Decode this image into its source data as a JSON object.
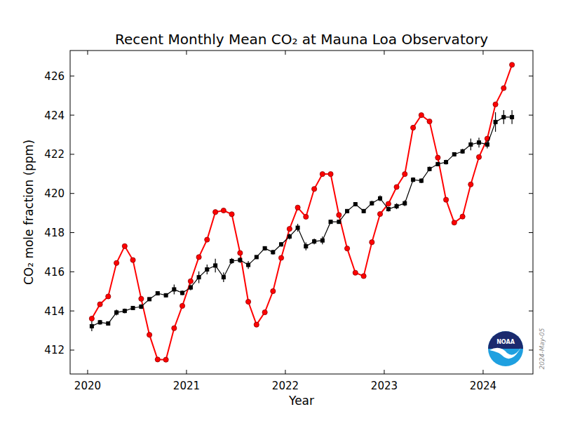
{
  "chart_data": {
    "type": "line",
    "title": "Recent Monthly Mean CO₂ at Mauna Loa Observatory",
    "x_label": "Year",
    "y_label": "CO₂ mole fraction (ppm)",
    "annotations": [
      "2024-May-05"
    ],
    "logo": "NOAA",
    "xlim": [
      2019.823,
      2024.504
    ],
    "ylim": [
      410.78,
      427.3
    ],
    "xticks": [
      2020,
      2021,
      2022,
      2023,
      2024
    ],
    "yticks": [
      412,
      414,
      416,
      418,
      420,
      422,
      424,
      426
    ],
    "grid": false,
    "x": [
      2020.042,
      2020.125,
      2020.208,
      2020.292,
      2020.375,
      2020.458,
      2020.542,
      2020.625,
      2020.708,
      2020.792,
      2020.875,
      2020.958,
      2021.042,
      2021.125,
      2021.208,
      2021.292,
      2021.375,
      2021.458,
      2021.542,
      2021.625,
      2021.708,
      2021.792,
      2021.875,
      2021.958,
      2022.042,
      2022.125,
      2022.208,
      2022.292,
      2022.375,
      2022.458,
      2022.542,
      2022.625,
      2022.708,
      2022.792,
      2022.875,
      2022.958,
      2023.042,
      2023.125,
      2023.208,
      2023.292,
      2023.375,
      2023.458,
      2023.542,
      2023.625,
      2023.708,
      2023.792,
      2023.875,
      2023.958,
      2024.042,
      2024.125,
      2024.208,
      2024.292
    ],
    "series": [
      {
        "color": "#ff0000",
        "marker": "circle",
        "line_style": "solid",
        "values": [
          413.61,
          414.34,
          414.74,
          416.45,
          417.31,
          416.6,
          414.62,
          412.78,
          411.52,
          411.51,
          413.12,
          414.26,
          415.52,
          416.75,
          417.64,
          419.05,
          419.13,
          418.94,
          416.96,
          414.47,
          413.3,
          413.93,
          415.01,
          416.71,
          418.19,
          419.28,
          418.81,
          420.23,
          420.99,
          420.99,
          418.9,
          417.19,
          415.95,
          415.78,
          417.51,
          418.95,
          419.47,
          420.33,
          420.99,
          423.36,
          424.0,
          423.68,
          421.83,
          419.68,
          418.51,
          418.82,
          420.46,
          421.86,
          422.8,
          424.55,
          425.38,
          426.57
        ]
      },
      {
        "color": "#000000",
        "marker": "square",
        "line_style": "solid",
        "values": [
          413.22,
          413.42,
          413.36,
          413.92,
          414.0,
          414.15,
          414.22,
          414.6,
          414.9,
          414.8,
          415.1,
          414.92,
          415.2,
          415.72,
          416.12,
          416.32,
          415.72,
          416.55,
          416.6,
          416.35,
          416.75,
          417.2,
          417.0,
          417.4,
          417.8,
          418.25,
          417.3,
          417.55,
          417.6,
          418.55,
          418.55,
          419.1,
          419.45,
          419.1,
          419.5,
          419.75,
          419.2,
          419.35,
          419.5,
          420.7,
          420.65,
          421.25,
          421.5,
          421.6,
          422.0,
          422.15,
          422.5,
          422.6,
          422.5,
          423.65,
          423.9,
          423.9
        ],
        "errors": [
          0.25,
          0.12,
          0.1,
          0.15,
          0.12,
          0.1,
          0.12,
          0.08,
          0.08,
          0.1,
          0.25,
          0.12,
          0.15,
          0.3,
          0.25,
          0.35,
          0.25,
          0.15,
          0.15,
          0.2,
          0.08,
          0.1,
          0.12,
          0.12,
          0.15,
          0.2,
          0.2,
          0.15,
          0.2,
          0.1,
          0.1,
          0.1,
          0.1,
          0.1,
          0.12,
          0.15,
          0.12,
          0.15,
          0.15,
          0.12,
          0.12,
          0.12,
          0.1,
          0.12,
          0.1,
          0.12,
          0.3,
          0.25,
          0.2,
          0.5,
          0.35,
          0.35
        ]
      }
    ]
  }
}
